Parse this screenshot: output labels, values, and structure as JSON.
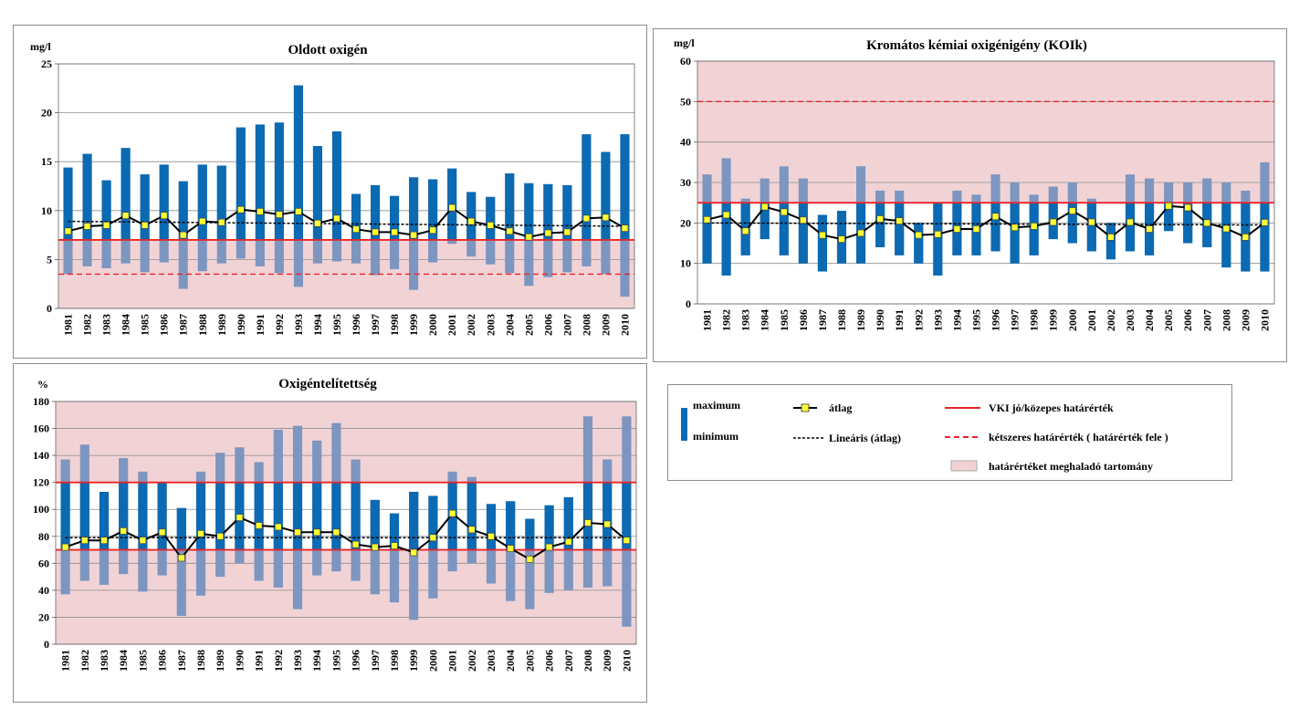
{
  "years": [
    "1981",
    "1982",
    "1983",
    "1984",
    "1985",
    "1986",
    "1987",
    "1988",
    "1989",
    "1990",
    "1991",
    "1992",
    "1993",
    "1994",
    "1995",
    "1996",
    "1997",
    "1998",
    "1999",
    "2000",
    "2001",
    "2002",
    "2003",
    "2004",
    "2005",
    "2006",
    "2007",
    "2008",
    "2009",
    "2010"
  ],
  "colors": {
    "bar_inside": "#0b6ab2",
    "bar_outside": "#7d96bf",
    "shade": "#f1d3d6",
    "limit": "#e8252a",
    "avg_line": "#000000",
    "avg_marker": "#ffff33",
    "grid": "#8e8e8e"
  },
  "legend": {
    "maximum": "maximum",
    "minimum": "minimum",
    "avg": "átlag",
    "linear": "Lineáris (átlag)",
    "limit": "VKI jó/közepes határérték",
    "double_limit": "kétszeres határérték ( határérték fele )",
    "range": "határértéket meghaladó tartomány"
  },
  "chart_data": [
    {
      "id": "do",
      "type": "bar",
      "title": "Oldott oxigén",
      "ylabel": "mg/l",
      "ylim": [
        0,
        25
      ],
      "ytick_values": [
        0,
        5,
        10,
        15,
        20,
        25
      ],
      "yticks": [
        "0",
        "5",
        "10",
        "15",
        "20",
        "25"
      ],
      "max": [
        14.4,
        15.8,
        13.1,
        16.4,
        13.7,
        14.7,
        13.0,
        14.7,
        14.6,
        18.5,
        18.8,
        19.0,
        22.8,
        16.6,
        18.1,
        11.7,
        12.6,
        11.5,
        13.4,
        13.2,
        14.3,
        11.9,
        11.4,
        13.8,
        12.8,
        12.7,
        12.6,
        17.8,
        16.0,
        17.8
      ],
      "min": [
        3.5,
        4.3,
        4.1,
        4.6,
        3.7,
        4.7,
        2.0,
        3.8,
        4.6,
        5.1,
        4.3,
        3.6,
        2.2,
        4.6,
        4.8,
        4.6,
        3.4,
        4.0,
        1.9,
        4.7,
        6.6,
        5.3,
        4.5,
        3.6,
        2.3,
        3.2,
        3.7,
        4.3,
        3.5,
        1.2
      ],
      "avg": [
        7.9,
        8.4,
        8.5,
        9.5,
        8.5,
        9.5,
        7.5,
        8.9,
        8.8,
        10.1,
        9.9,
        9.6,
        9.9,
        8.7,
        9.2,
        8.1,
        7.8,
        7.8,
        7.5,
        8.0,
        10.3,
        8.9,
        8.5,
        7.9,
        7.3,
        7.7,
        7.8,
        9.2,
        9.3,
        8.2
      ],
      "trend": [
        8.9,
        8.4
      ],
      "limit": 7.0,
      "double_limit": 3.5,
      "shade": [
        0,
        7.0
      ]
    },
    {
      "id": "koi",
      "type": "bar",
      "title": "Kromátos kémiai oxigénigény (KOIk)",
      "ylabel": "mg/l",
      "ylim": [
        0,
        60
      ],
      "ytick_values": [
        0,
        10,
        20,
        30,
        40,
        50,
        60
      ],
      "yticks": [
        "0",
        "10",
        "20",
        "30",
        "40",
        "50",
        "60"
      ],
      "max": [
        32,
        36,
        26,
        31,
        34,
        31,
        22,
        23,
        34,
        28,
        28,
        20,
        25,
        28,
        27,
        32,
        30,
        27,
        29,
        30,
        26,
        20,
        32,
        31,
        30,
        30,
        31,
        30,
        28,
        35
      ],
      "min": [
        10,
        7,
        12,
        16,
        12,
        10,
        8,
        10,
        10,
        14,
        12,
        10,
        7,
        12,
        12,
        13,
        10,
        12,
        16,
        15,
        13,
        11,
        13,
        12,
        18,
        15,
        14,
        9,
        8,
        8
      ],
      "avg": [
        20.8,
        22.0,
        18.0,
        24.0,
        22.7,
        20.7,
        17.0,
        16.0,
        17.5,
        21.0,
        20.5,
        17.0,
        17.2,
        18.5,
        18.5,
        21.6,
        18.9,
        19.2,
        20.2,
        23.0,
        20.2,
        16.5,
        20.2,
        18.5,
        24.2,
        23.8,
        20.0,
        18.6,
        16.5,
        20.1
      ],
      "trend": [
        20.0,
        19.5
      ],
      "limit": 25,
      "double_limit": 50,
      "shade": [
        25,
        60
      ]
    },
    {
      "id": "sat",
      "type": "bar",
      "title": "Oxigéntelítettség",
      "ylabel": "%",
      "ylim": [
        0,
        180
      ],
      "ytick_values": [
        0,
        20,
        40,
        60,
        80,
        100,
        120,
        140,
        160,
        180
      ],
      "yticks": [
        "0",
        "20",
        "40",
        "60",
        "80",
        "100",
        "120",
        "140",
        "160",
        "180"
      ],
      "max": [
        137,
        148,
        113,
        138,
        128,
        120,
        101,
        128,
        142,
        146,
        135,
        159,
        162,
        151,
        164,
        137,
        107,
        97,
        113,
        110,
        128,
        124,
        104,
        106,
        93,
        103,
        109,
        169,
        137,
        169
      ],
      "min": [
        37,
        47,
        44,
        52,
        39,
        51,
        21,
        36,
        50,
        60,
        47,
        42,
        26,
        51,
        54,
        47,
        37,
        31,
        18,
        34,
        54,
        60,
        45,
        32,
        26,
        38,
        40,
        42,
        43,
        13
      ],
      "avg": [
        72,
        77,
        77,
        84,
        77,
        83,
        64,
        82,
        80,
        94,
        88,
        87,
        83,
        83,
        83,
        74,
        72,
        73,
        68,
        79,
        97,
        85,
        80,
        71,
        63,
        72,
        76,
        90,
        89,
        77
      ],
      "trend": [
        79,
        79
      ],
      "limit_low": 70,
      "limit_high": 120,
      "shade": [
        [
          0,
          70
        ],
        [
          120,
          180
        ]
      ]
    }
  ]
}
